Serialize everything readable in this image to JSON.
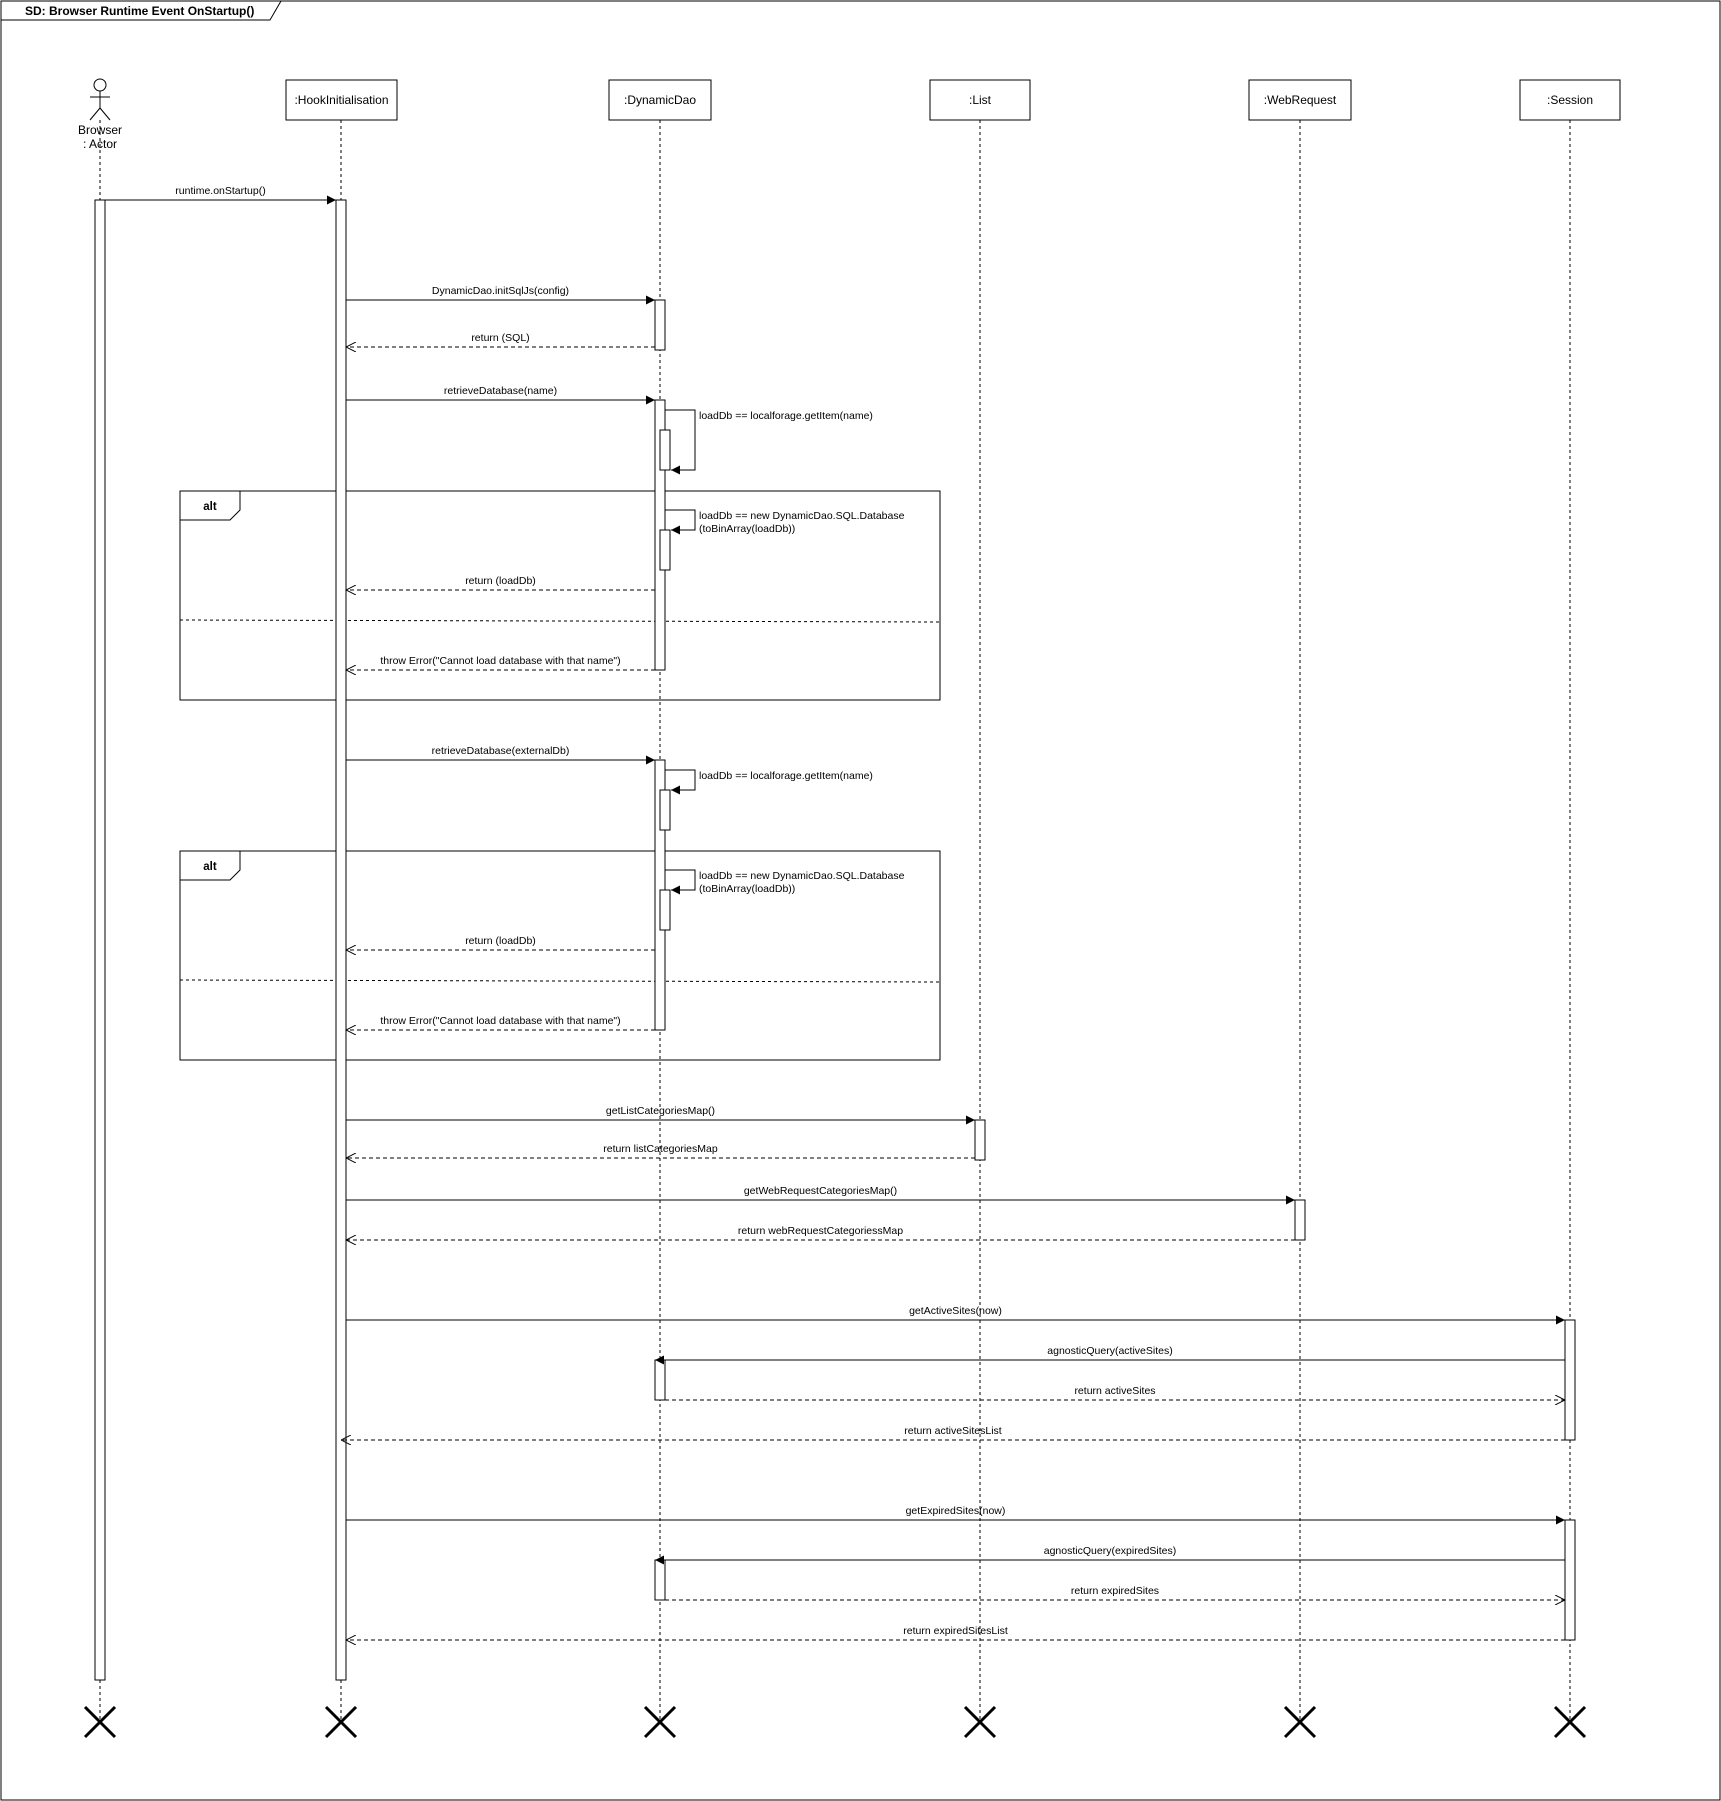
{
  "frame": {
    "title": "SD: Browser Runtime Event OnStartup()"
  },
  "actor": {
    "name": "Browser",
    "role": ": Actor"
  },
  "participants": [
    {
      "id": "hook",
      "label": ":HookInitialisation"
    },
    {
      "id": "dao",
      "label": ":DynamicDao"
    },
    {
      "id": "list",
      "label": ":List"
    },
    {
      "id": "web",
      "label": ":WebRequest"
    },
    {
      "id": "session",
      "label": ":Session"
    }
  ],
  "fragments": [
    {
      "operator": "alt"
    },
    {
      "operator": "alt"
    }
  ],
  "messages": [
    {
      "from": "actor",
      "to": "hook",
      "kind": "sync",
      "text": [
        "runtime.onStartup()"
      ]
    },
    {
      "from": "hook",
      "to": "dao",
      "kind": "sync",
      "text": [
        "DynamicDao.initSqlJs(config)"
      ]
    },
    {
      "from": "dao",
      "to": "hook",
      "kind": "return",
      "text": [
        "return (SQL)"
      ]
    },
    {
      "from": "hook",
      "to": "dao",
      "kind": "sync",
      "text": [
        "retrieveDatabase(name)"
      ]
    },
    {
      "from": "dao",
      "to": "dao",
      "kind": "self",
      "text": [
        "loadDb == localforage.getItem(name)"
      ]
    },
    {
      "from": "dao",
      "to": "dao",
      "kind": "self",
      "text": [
        "loadDb == new DynamicDao.SQL.Database",
        "(toBinArray(loadDb))"
      ]
    },
    {
      "from": "dao",
      "to": "hook",
      "kind": "return",
      "text": [
        "return (loadDb)"
      ]
    },
    {
      "from": "dao",
      "to": "hook",
      "kind": "return",
      "text": [
        "throw Error(\"Cannot load database with that name\")"
      ]
    },
    {
      "from": "hook",
      "to": "dao",
      "kind": "sync",
      "text": [
        "retrieveDatabase(externalDb)"
      ]
    },
    {
      "from": "dao",
      "to": "dao",
      "kind": "self",
      "text": [
        "loadDb == localforage.getItem(name)"
      ]
    },
    {
      "from": "dao",
      "to": "dao",
      "kind": "self",
      "text": [
        "loadDb == new DynamicDao.SQL.Database",
        "(toBinArray(loadDb))"
      ]
    },
    {
      "from": "dao",
      "to": "hook",
      "kind": "return",
      "text": [
        "return (loadDb)"
      ]
    },
    {
      "from": "dao",
      "to": "hook",
      "kind": "return",
      "text": [
        "throw Error(\"Cannot load database with that name\")"
      ]
    },
    {
      "from": "hook",
      "to": "list",
      "kind": "sync",
      "text": [
        "getListCategoriesMap()"
      ]
    },
    {
      "from": "list",
      "to": "hook",
      "kind": "return",
      "text": [
        "return listCategoriesMap"
      ]
    },
    {
      "from": "hook",
      "to": "web",
      "kind": "sync",
      "text": [
        "getWebRequestCategoriesMap()"
      ]
    },
    {
      "from": "web",
      "to": "hook",
      "kind": "return",
      "text": [
        "return webRequestCategoriessMap"
      ]
    },
    {
      "from": "hook",
      "to": "session",
      "kind": "sync",
      "text": [
        "getActiveSites(now)"
      ]
    },
    {
      "from": "session",
      "to": "dao",
      "kind": "sync",
      "text": [
        "agnosticQuery(activeSites)"
      ]
    },
    {
      "from": "dao",
      "to": "session",
      "kind": "return",
      "text": [
        "return activeSites"
      ]
    },
    {
      "from": "session",
      "to": "hook",
      "kind": "return",
      "text": [
        "return activeSitesList"
      ]
    },
    {
      "from": "hook",
      "to": "session",
      "kind": "sync",
      "text": [
        "getExpiredSites(now)"
      ]
    },
    {
      "from": "session",
      "to": "dao",
      "kind": "sync",
      "text": [
        "agnosticQuery(expiredSites)"
      ]
    },
    {
      "from": "dao",
      "to": "session",
      "kind": "return",
      "text": [
        "return expiredSites"
      ]
    },
    {
      "from": "session",
      "to": "hook",
      "kind": "return",
      "text": [
        "return expiredSitesList"
      ]
    }
  ]
}
